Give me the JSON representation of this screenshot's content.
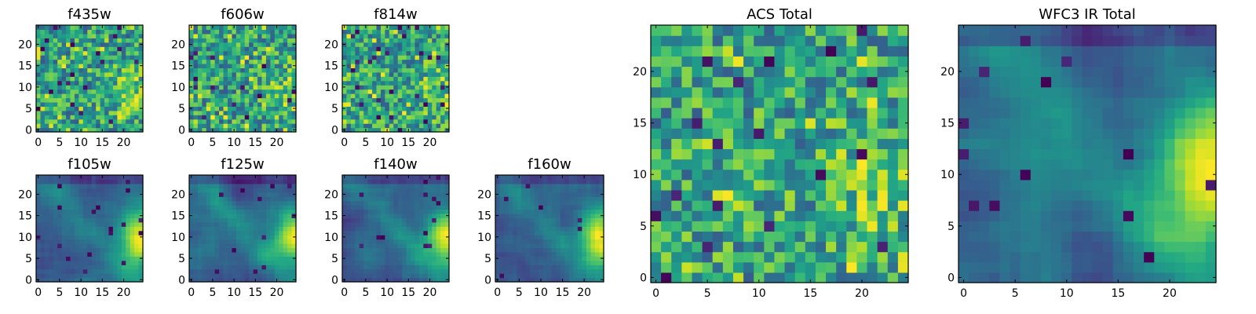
{
  "chart_data": [
    {
      "type": "heatmap",
      "title": "f435w",
      "xticks": [
        "0",
        "5",
        "10",
        "15",
        "20"
      ],
      "yticks": [
        "0",
        "5",
        "10",
        "15",
        "20"
      ],
      "xlim": [
        0,
        25
      ],
      "ylim": [
        0,
        25
      ],
      "grid": 25,
      "colormap": "viridis",
      "texture": "noise",
      "seed": 11
    },
    {
      "type": "heatmap",
      "title": "f606w",
      "xticks": [
        "0",
        "5",
        "10",
        "15",
        "20"
      ],
      "yticks": [
        "0",
        "5",
        "10",
        "15",
        "20"
      ],
      "xlim": [
        0,
        25
      ],
      "ylim": [
        0,
        25
      ],
      "grid": 25,
      "colormap": "viridis",
      "texture": "noise",
      "seed": 23
    },
    {
      "type": "heatmap",
      "title": "f814w",
      "xticks": [
        "0",
        "5",
        "10",
        "15",
        "20"
      ],
      "yticks": [
        "0",
        "5",
        "10",
        "15",
        "20"
      ],
      "xlim": [
        0,
        25
      ],
      "ylim": [
        0,
        25
      ],
      "grid": 25,
      "colormap": "viridis",
      "texture": "noise",
      "seed": 37
    },
    {
      "type": "heatmap",
      "title": "f105w",
      "xticks": [
        "0",
        "5",
        "10",
        "15",
        "20"
      ],
      "yticks": [
        "0",
        "5",
        "10",
        "15",
        "20"
      ],
      "xlim": [
        0,
        25
      ],
      "ylim": [
        0,
        25
      ],
      "grid": 25,
      "colormap": "viridis",
      "texture": "smooth",
      "seed": 41
    },
    {
      "type": "heatmap",
      "title": "f125w",
      "xticks": [
        "0",
        "5",
        "10",
        "15",
        "20"
      ],
      "yticks": [
        "0",
        "5",
        "10",
        "15",
        "20"
      ],
      "xlim": [
        0,
        25
      ],
      "ylim": [
        0,
        25
      ],
      "grid": 25,
      "colormap": "viridis",
      "texture": "smooth",
      "seed": 53
    },
    {
      "type": "heatmap",
      "title": "f140w",
      "xticks": [
        "0",
        "5",
        "10",
        "15",
        "20"
      ],
      "yticks": [
        "0",
        "5",
        "10",
        "15",
        "20"
      ],
      "xlim": [
        0,
        25
      ],
      "ylim": [
        0,
        25
      ],
      "grid": 25,
      "colormap": "viridis",
      "texture": "smooth",
      "seed": 67
    },
    {
      "type": "heatmap",
      "title": "f160w",
      "xticks": [
        "0",
        "5",
        "10",
        "15",
        "20"
      ],
      "yticks": [
        "0",
        "5",
        "10",
        "15",
        "20"
      ],
      "xlim": [
        0,
        25
      ],
      "ylim": [
        0,
        25
      ],
      "grid": 25,
      "colormap": "viridis",
      "texture": "smooth",
      "seed": 79
    },
    {
      "type": "heatmap",
      "title": "ACS Total",
      "xticks": [
        "0",
        "5",
        "10",
        "15",
        "20"
      ],
      "yticks": [
        "0",
        "5",
        "10",
        "15",
        "20"
      ],
      "xlim": [
        0,
        25
      ],
      "ylim": [
        0,
        25
      ],
      "grid": 25,
      "colormap": "viridis",
      "texture": "noise",
      "seed": 97
    },
    {
      "type": "heatmap",
      "title": "WFC3 IR Total",
      "xticks": [
        "0",
        "5",
        "10",
        "15",
        "20"
      ],
      "yticks": [
        "0",
        "5",
        "10",
        "15",
        "20"
      ],
      "xlim": [
        0,
        25
      ],
      "ylim": [
        0,
        25
      ],
      "grid": 25,
      "colormap": "viridis",
      "texture": "smooth",
      "seed": 101
    }
  ]
}
